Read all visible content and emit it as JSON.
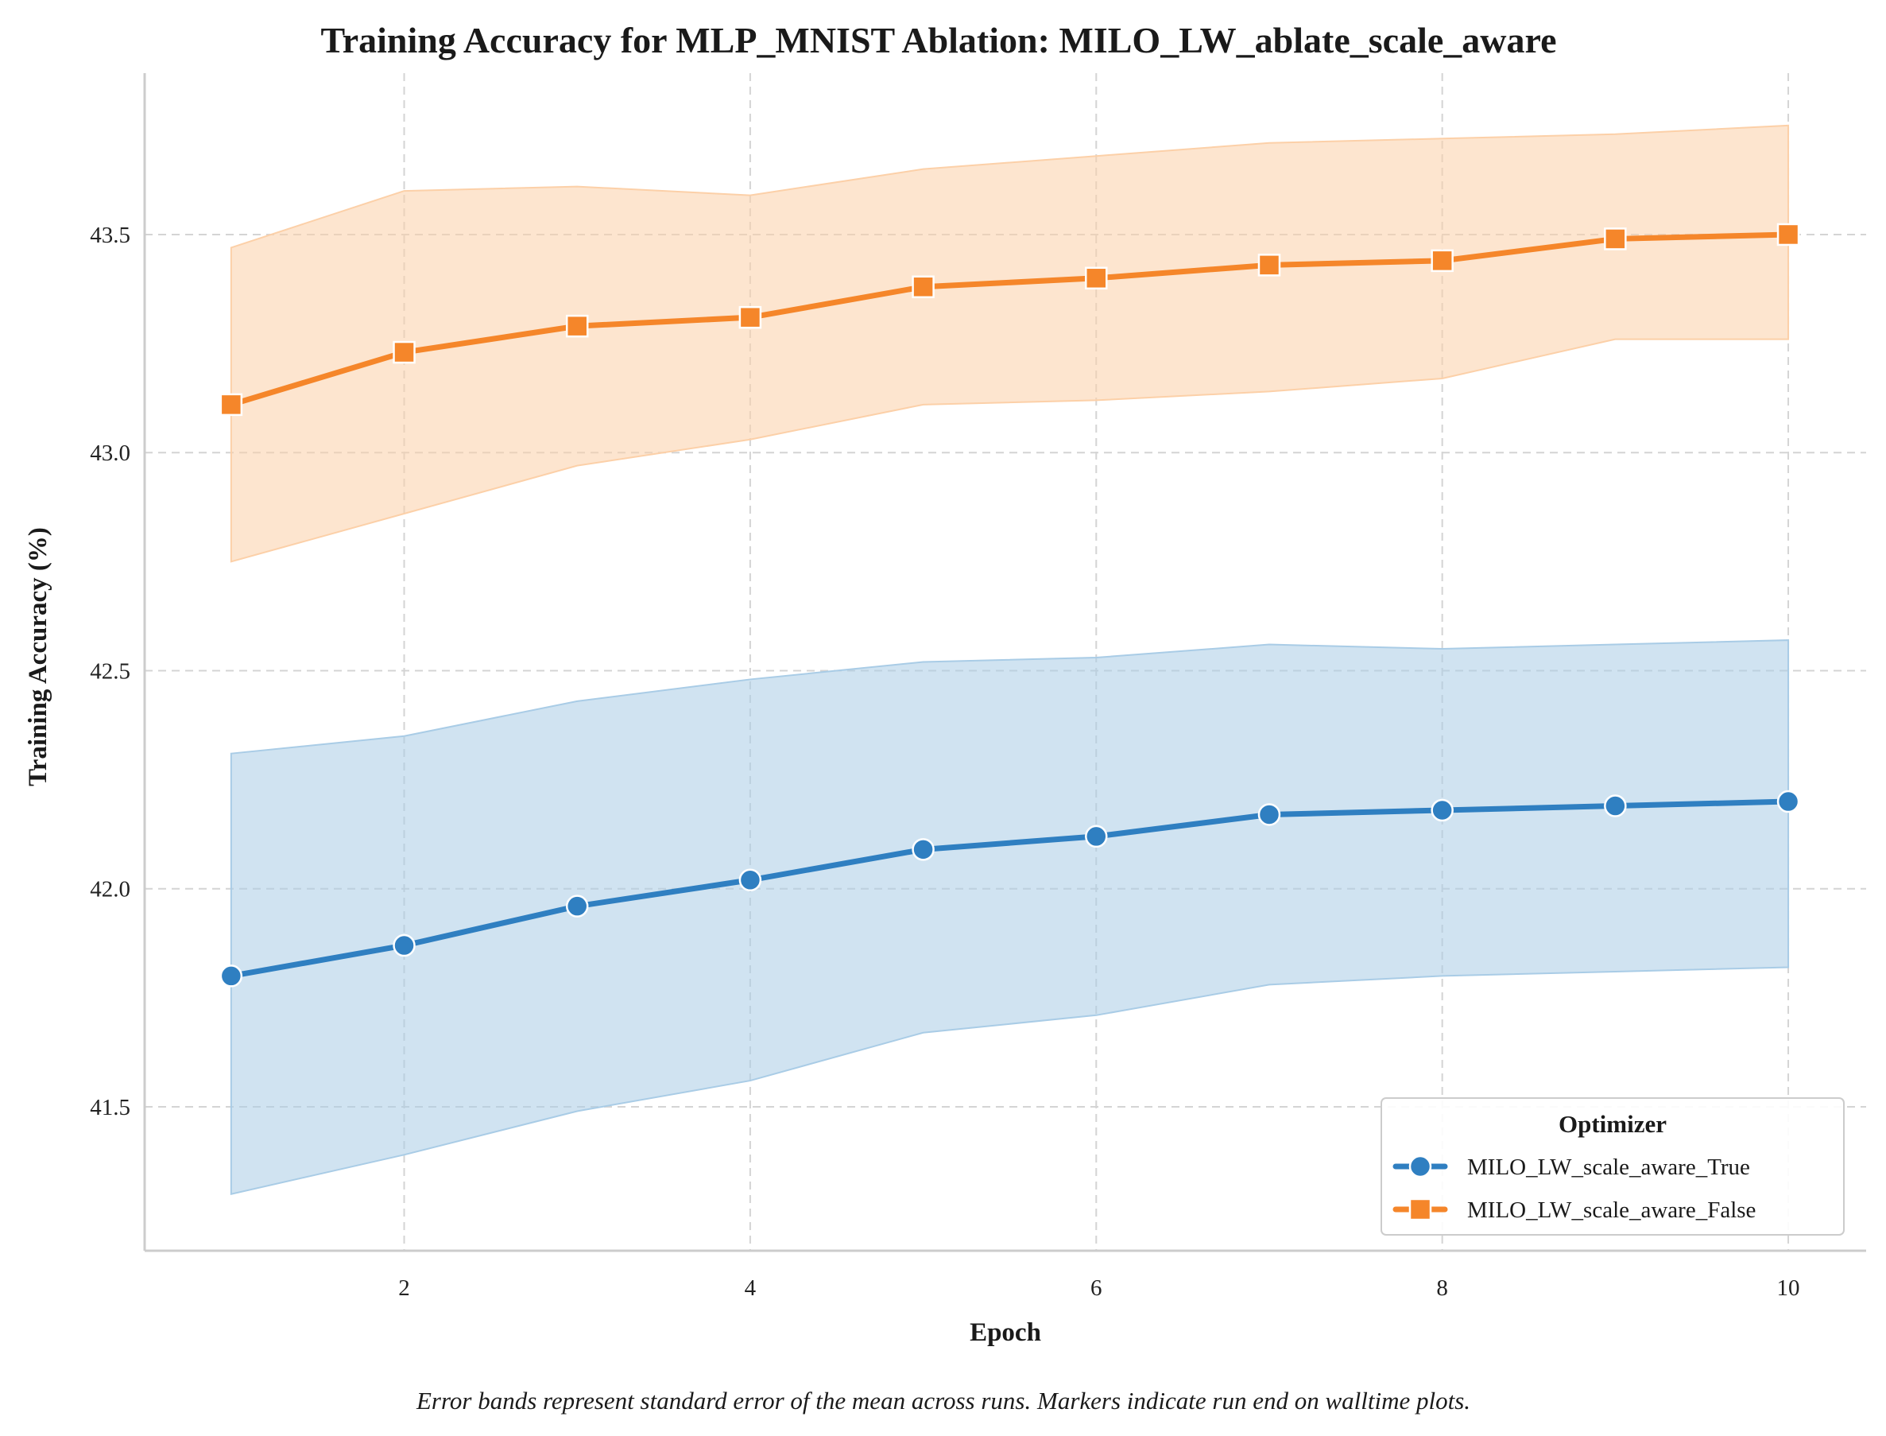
{
  "caption": "Error bands represent standard error of the mean across runs. Markers indicate run end on walltime plots.",
  "chart_data": {
    "type": "line",
    "title": "Training Accuracy for MLP_MNIST Ablation: MILO_LW_ablate_scale_aware",
    "xlabel": "Epoch",
    "ylabel": "Training Accuracy (%)",
    "xlim": [
      0.5,
      10.45
    ],
    "ylim": [
      41.17,
      43.87
    ],
    "xticks": [
      2,
      4,
      6,
      8,
      10
    ],
    "yticks": [
      41.5,
      42.0,
      42.5,
      43.0,
      43.5
    ],
    "xtick_labels": [
      "2",
      "4",
      "6",
      "8",
      "10"
    ],
    "ytick_labels": [
      "41.5",
      "42.0",
      "42.5",
      "43.0",
      "43.5"
    ],
    "grid": true,
    "legend": {
      "title": "Optimizer",
      "placement": "lower-right"
    },
    "x": [
      1,
      2,
      3,
      4,
      5,
      6,
      7,
      8,
      9,
      10
    ],
    "series": [
      {
        "name": "MILO_LW_scale_aware_True",
        "color": "#2f7fc1",
        "band_color": "#a9cce6",
        "marker": "circle",
        "values": [
          41.8,
          41.87,
          41.96,
          42.02,
          42.09,
          42.12,
          42.17,
          42.18,
          42.19,
          42.2
        ],
        "lower": [
          41.3,
          41.39,
          41.49,
          41.56,
          41.67,
          41.71,
          41.78,
          41.8,
          41.81,
          41.82
        ],
        "upper": [
          42.31,
          42.35,
          42.43,
          42.48,
          42.52,
          42.53,
          42.56,
          42.55,
          42.56,
          42.57
        ]
      },
      {
        "name": "MILO_LW_scale_aware_False",
        "color": "#f5862a",
        "band_color": "#fcd0a8",
        "marker": "square",
        "values": [
          43.11,
          43.23,
          43.29,
          43.31,
          43.38,
          43.4,
          43.43,
          43.44,
          43.49,
          43.5
        ],
        "lower": [
          42.75,
          42.86,
          42.97,
          43.03,
          43.11,
          43.12,
          43.14,
          43.17,
          43.26,
          43.26
        ],
        "upper": [
          43.47,
          43.6,
          43.61,
          43.59,
          43.65,
          43.68,
          43.71,
          43.72,
          43.73,
          43.75
        ]
      }
    ]
  }
}
